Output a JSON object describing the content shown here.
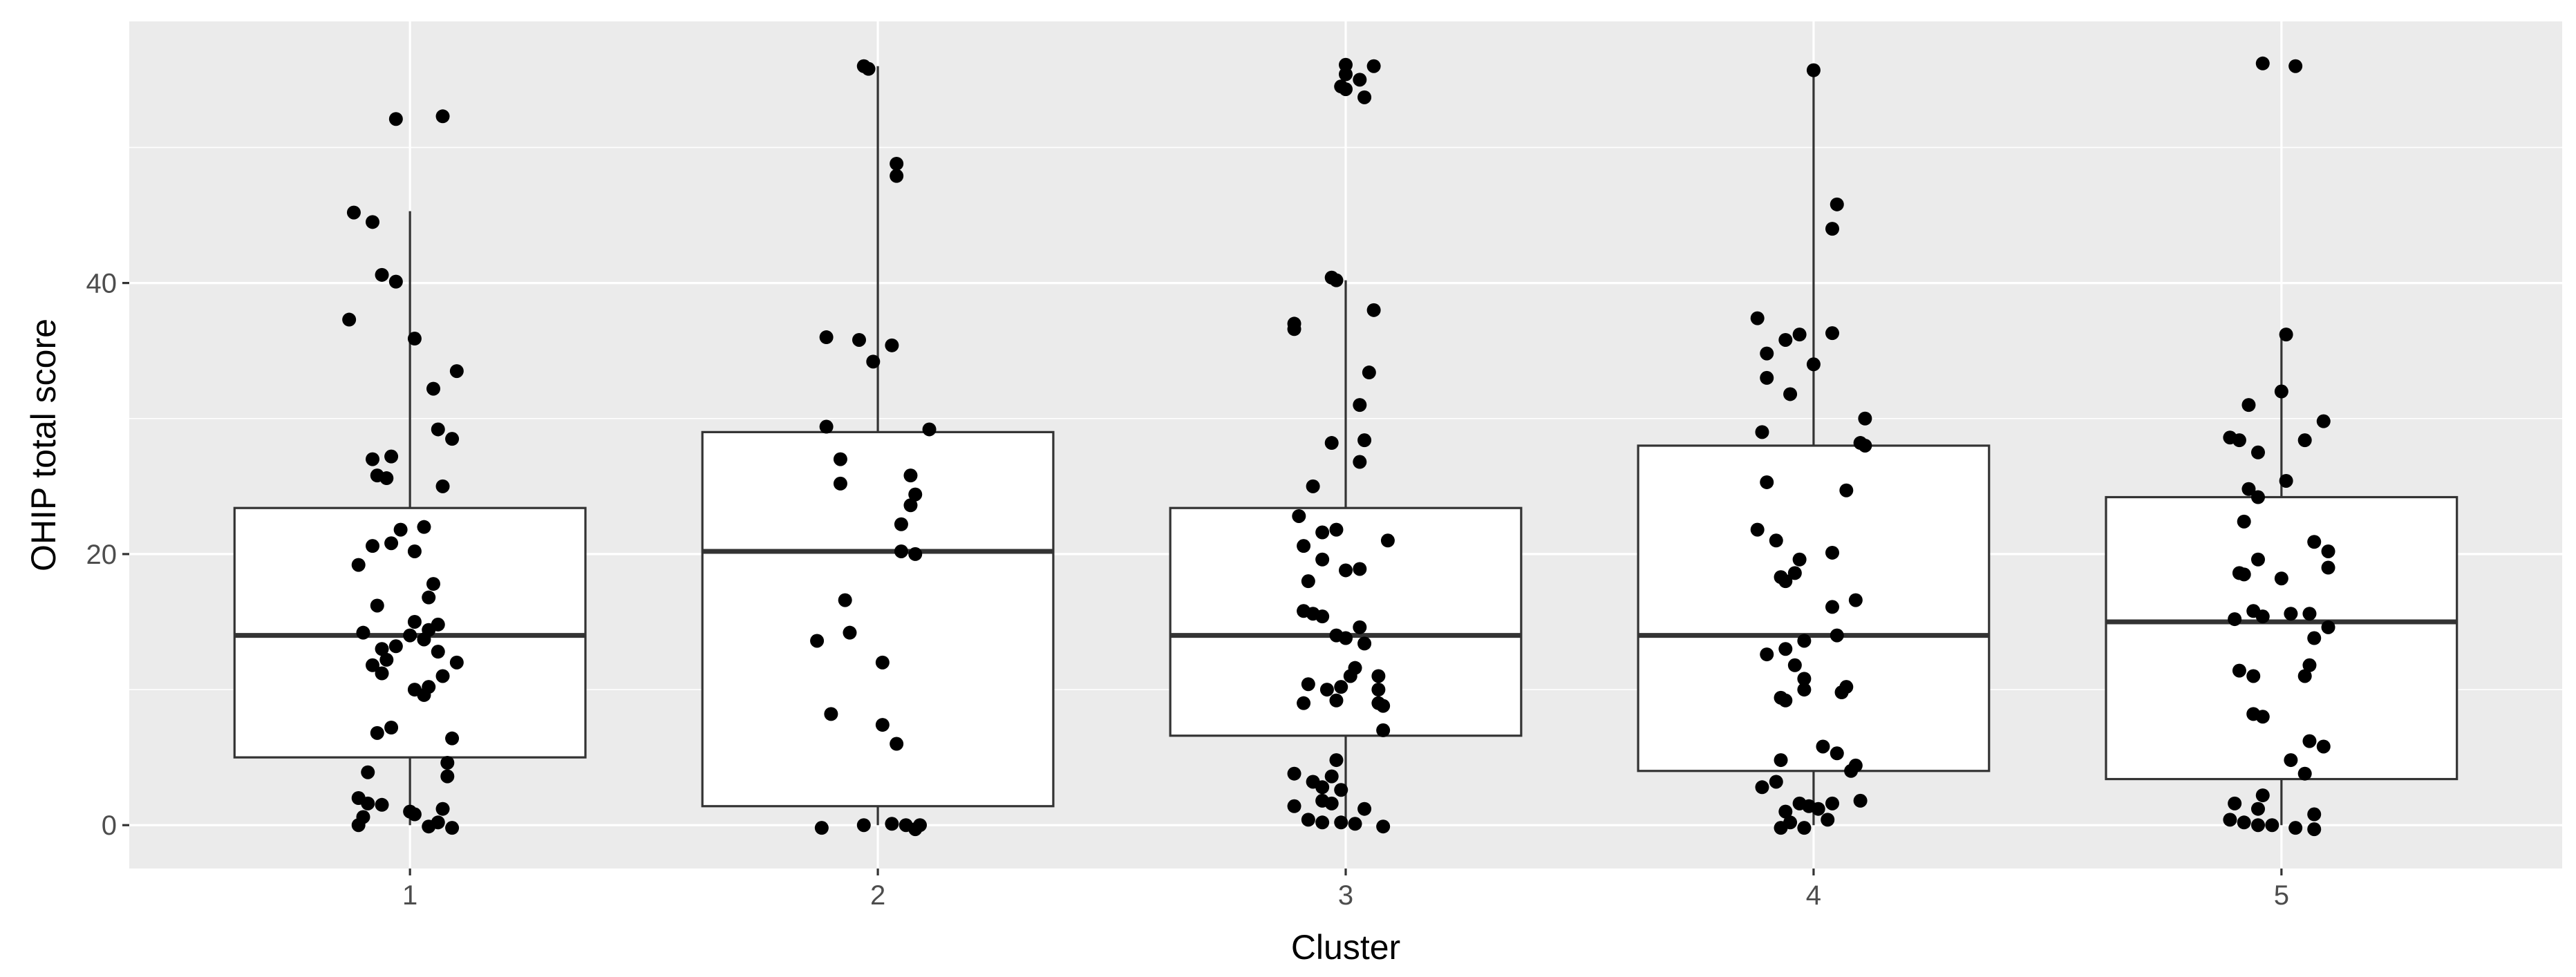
{
  "chart_data": {
    "type": "box",
    "title": "",
    "xlabel": "Cluster",
    "ylabel": "OHIP total score",
    "categories": [
      "1",
      "2",
      "3",
      "4",
      "5"
    ],
    "ylim": [
      -3.2,
      59.3
    ],
    "yticks": [
      0,
      20,
      40
    ],
    "ytick_labels": [
      "0",
      "20",
      "40"
    ],
    "grid": true,
    "legend": "none",
    "colors": {
      "panel": "#EBEBEB",
      "grid": "#FFFFFF",
      "box_fill": "#FFFFFF",
      "box_line": "#333333",
      "points": "#000000"
    },
    "boxes": [
      {
        "category": "1",
        "q1": 5,
        "median": 14,
        "q3": 23.4,
        "whisker_low": 0,
        "whisker_high": 45.3
      },
      {
        "category": "2",
        "q1": 1.4,
        "median": 20.2,
        "q3": 29,
        "whisker_low": 0,
        "whisker_high": 56
      },
      {
        "category": "3",
        "q1": 6.6,
        "median": 14,
        "q3": 23.4,
        "whisker_low": 0,
        "whisker_high": 40.2
      },
      {
        "category": "4",
        "q1": 4,
        "median": 14,
        "q3": 28,
        "whisker_low": 0,
        "whisker_high": 56
      },
      {
        "category": "5",
        "q1": 3.4,
        "median": 15,
        "q3": 24.2,
        "whisker_low": 0,
        "whisker_high": 36.2
      }
    ],
    "points": [
      {
        "x": 0.97,
        "y": 52.1
      },
      {
        "x": 1.07,
        "y": 52.3
      },
      {
        "x": 0.88,
        "y": 45.2
      },
      {
        "x": 0.92,
        "y": 44.5
      },
      {
        "x": 0.94,
        "y": 40.6
      },
      {
        "x": 0.97,
        "y": 40.1
      },
      {
        "x": 0.87,
        "y": 37.3
      },
      {
        "x": 1.01,
        "y": 35.9
      },
      {
        "x": 1.1,
        "y": 33.5
      },
      {
        "x": 1.05,
        "y": 32.2
      },
      {
        "x": 1.06,
        "y": 29.2
      },
      {
        "x": 1.09,
        "y": 28.5
      },
      {
        "x": 0.92,
        "y": 27.0
      },
      {
        "x": 0.96,
        "y": 27.2
      },
      {
        "x": 0.93,
        "y": 25.8
      },
      {
        "x": 0.95,
        "y": 25.6
      },
      {
        "x": 1.07,
        "y": 25.0
      },
      {
        "x": 0.98,
        "y": 21.8
      },
      {
        "x": 1.03,
        "y": 22.0
      },
      {
        "x": 0.92,
        "y": 20.6
      },
      {
        "x": 0.96,
        "y": 20.8
      },
      {
        "x": 1.01,
        "y": 20.2
      },
      {
        "x": 0.89,
        "y": 19.2
      },
      {
        "x": 1.05,
        "y": 17.8
      },
      {
        "x": 1.04,
        "y": 16.8
      },
      {
        "x": 0.93,
        "y": 16.2
      },
      {
        "x": 1.01,
        "y": 15.0
      },
      {
        "x": 1.06,
        "y": 14.8
      },
      {
        "x": 1.04,
        "y": 14.4
      },
      {
        "x": 0.9,
        "y": 14.2
      },
      {
        "x": 1.0,
        "y": 14.0
      },
      {
        "x": 1.03,
        "y": 13.7
      },
      {
        "x": 0.97,
        "y": 13.2
      },
      {
        "x": 0.94,
        "y": 13.0
      },
      {
        "x": 1.06,
        "y": 12.8
      },
      {
        "x": 0.95,
        "y": 12.2
      },
      {
        "x": 1.1,
        "y": 12.0
      },
      {
        "x": 0.92,
        "y": 11.8
      },
      {
        "x": 0.94,
        "y": 11.2
      },
      {
        "x": 1.07,
        "y": 11.0
      },
      {
        "x": 1.01,
        "y": 10.0
      },
      {
        "x": 1.04,
        "y": 10.2
      },
      {
        "x": 1.03,
        "y": 9.6
      },
      {
        "x": 0.96,
        "y": 7.2
      },
      {
        "x": 0.93,
        "y": 6.8
      },
      {
        "x": 1.09,
        "y": 6.4
      },
      {
        "x": 1.08,
        "y": 4.6
      },
      {
        "x": 0.91,
        "y": 3.9
      },
      {
        "x": 1.08,
        "y": 3.6
      },
      {
        "x": 0.89,
        "y": 2.0
      },
      {
        "x": 0.91,
        "y": 1.6
      },
      {
        "x": 0.94,
        "y": 1.5
      },
      {
        "x": 1.07,
        "y": 1.2
      },
      {
        "x": 1.0,
        "y": 1.0
      },
      {
        "x": 0.9,
        "y": 0.6
      },
      {
        "x": 1.01,
        "y": 0.8
      },
      {
        "x": 1.06,
        "y": 0.2
      },
      {
        "x": 0.89,
        "y": 0.0
      },
      {
        "x": 1.04,
        "y": -0.1
      },
      {
        "x": 1.09,
        "y": -0.2
      },
      {
        "x": 1.97,
        "y": 56.0
      },
      {
        "x": 1.98,
        "y": 55.8
      },
      {
        "x": 2.04,
        "y": 48.8
      },
      {
        "x": 2.04,
        "y": 47.9
      },
      {
        "x": 1.89,
        "y": 36.0
      },
      {
        "x": 1.96,
        "y": 35.8
      },
      {
        "x": 2.03,
        "y": 35.4
      },
      {
        "x": 1.99,
        "y": 34.2
      },
      {
        "x": 1.89,
        "y": 29.4
      },
      {
        "x": 2.11,
        "y": 29.2
      },
      {
        "x": 1.92,
        "y": 27.0
      },
      {
        "x": 2.07,
        "y": 25.8
      },
      {
        "x": 1.92,
        "y": 25.2
      },
      {
        "x": 2.08,
        "y": 24.4
      },
      {
        "x": 2.07,
        "y": 23.6
      },
      {
        "x": 2.05,
        "y": 22.2
      },
      {
        "x": 2.05,
        "y": 20.2
      },
      {
        "x": 2.08,
        "y": 20.0
      },
      {
        "x": 1.93,
        "y": 16.6
      },
      {
        "x": 1.94,
        "y": 14.2
      },
      {
        "x": 1.87,
        "y": 13.6
      },
      {
        "x": 2.01,
        "y": 12.0
      },
      {
        "x": 1.9,
        "y": 8.2
      },
      {
        "x": 2.01,
        "y": 7.4
      },
      {
        "x": 2.04,
        "y": 6.0
      },
      {
        "x": 1.88,
        "y": -0.2
      },
      {
        "x": 1.97,
        "y": 0.0
      },
      {
        "x": 2.03,
        "y": 0.1
      },
      {
        "x": 2.06,
        "y": 0.0
      },
      {
        "x": 2.08,
        "y": -0.3
      },
      {
        "x": 2.09,
        "y": 0.0
      },
      {
        "x": 3.0,
        "y": 56.1
      },
      {
        "x": 3.0,
        "y": 55.4
      },
      {
        "x": 3.06,
        "y": 56.0
      },
      {
        "x": 3.03,
        "y": 55.0
      },
      {
        "x": 2.99,
        "y": 54.5
      },
      {
        "x": 3.0,
        "y": 54.3
      },
      {
        "x": 3.04,
        "y": 53.7
      },
      {
        "x": 2.97,
        "y": 40.4
      },
      {
        "x": 2.98,
        "y": 40.2
      },
      {
        "x": 3.06,
        "y": 38.0
      },
      {
        "x": 2.89,
        "y": 37.0
      },
      {
        "x": 2.89,
        "y": 36.6
      },
      {
        "x": 3.05,
        "y": 33.4
      },
      {
        "x": 3.03,
        "y": 31.0
      },
      {
        "x": 3.04,
        "y": 28.4
      },
      {
        "x": 2.97,
        "y": 28.2
      },
      {
        "x": 3.03,
        "y": 26.8
      },
      {
        "x": 2.93,
        "y": 25.0
      },
      {
        "x": 2.9,
        "y": 22.8
      },
      {
        "x": 2.95,
        "y": 21.6
      },
      {
        "x": 2.98,
        "y": 21.8
      },
      {
        "x": 3.09,
        "y": 21.0
      },
      {
        "x": 2.91,
        "y": 20.6
      },
      {
        "x": 2.95,
        "y": 19.6
      },
      {
        "x": 3.0,
        "y": 18.8
      },
      {
        "x": 3.03,
        "y": 18.9
      },
      {
        "x": 2.92,
        "y": 18.0
      },
      {
        "x": 2.91,
        "y": 15.8
      },
      {
        "x": 2.93,
        "y": 15.6
      },
      {
        "x": 2.95,
        "y": 15.4
      },
      {
        "x": 3.03,
        "y": 14.6
      },
      {
        "x": 2.98,
        "y": 14.0
      },
      {
        "x": 3.0,
        "y": 13.8
      },
      {
        "x": 3.04,
        "y": 13.4
      },
      {
        "x": 3.02,
        "y": 11.6
      },
      {
        "x": 3.01,
        "y": 11.0
      },
      {
        "x": 3.07,
        "y": 11.0
      },
      {
        "x": 2.92,
        "y": 10.4
      },
      {
        "x": 2.96,
        "y": 10.0
      },
      {
        "x": 2.99,
        "y": 10.2
      },
      {
        "x": 3.07,
        "y": 10.0
      },
      {
        "x": 2.98,
        "y": 9.2
      },
      {
        "x": 2.91,
        "y": 9.0
      },
      {
        "x": 3.07,
        "y": 9.0
      },
      {
        "x": 3.08,
        "y": 8.8
      },
      {
        "x": 3.08,
        "y": 7.0
      },
      {
        "x": 2.98,
        "y": 4.8
      },
      {
        "x": 2.89,
        "y": 3.8
      },
      {
        "x": 2.97,
        "y": 3.6
      },
      {
        "x": 2.93,
        "y": 3.2
      },
      {
        "x": 2.95,
        "y": 2.8
      },
      {
        "x": 2.99,
        "y": 2.6
      },
      {
        "x": 2.95,
        "y": 1.8
      },
      {
        "x": 2.97,
        "y": 1.6
      },
      {
        "x": 2.89,
        "y": 1.4
      },
      {
        "x": 3.04,
        "y": 1.2
      },
      {
        "x": 2.92,
        "y": 0.4
      },
      {
        "x": 2.95,
        "y": 0.2
      },
      {
        "x": 2.99,
        "y": 0.2
      },
      {
        "x": 3.02,
        "y": 0.1
      },
      {
        "x": 3.08,
        "y": -0.1
      },
      {
        "x": 4.0,
        "y": 55.7
      },
      {
        "x": 4.05,
        "y": 45.8
      },
      {
        "x": 4.04,
        "y": 44.0
      },
      {
        "x": 3.88,
        "y": 37.4
      },
      {
        "x": 3.97,
        "y": 36.2
      },
      {
        "x": 4.04,
        "y": 36.3
      },
      {
        "x": 3.94,
        "y": 35.8
      },
      {
        "x": 3.9,
        "y": 34.8
      },
      {
        "x": 4.0,
        "y": 34.0
      },
      {
        "x": 3.9,
        "y": 33.0
      },
      {
        "x": 3.95,
        "y": 31.8
      },
      {
        "x": 4.11,
        "y": 30.0
      },
      {
        "x": 3.89,
        "y": 29.0
      },
      {
        "x": 4.1,
        "y": 28.2
      },
      {
        "x": 4.11,
        "y": 28.0
      },
      {
        "x": 3.9,
        "y": 25.3
      },
      {
        "x": 4.07,
        "y": 24.7
      },
      {
        "x": 3.88,
        "y": 21.8
      },
      {
        "x": 3.92,
        "y": 21.0
      },
      {
        "x": 4.04,
        "y": 20.1
      },
      {
        "x": 3.97,
        "y": 19.6
      },
      {
        "x": 3.93,
        "y": 18.3
      },
      {
        "x": 3.96,
        "y": 18.6
      },
      {
        "x": 3.94,
        "y": 18.0
      },
      {
        "x": 4.09,
        "y": 16.6
      },
      {
        "x": 4.04,
        "y": 16.1
      },
      {
        "x": 3.98,
        "y": 13.6
      },
      {
        "x": 4.05,
        "y": 14.0
      },
      {
        "x": 3.94,
        "y": 13.0
      },
      {
        "x": 3.9,
        "y": 12.6
      },
      {
        "x": 3.96,
        "y": 11.8
      },
      {
        "x": 3.98,
        "y": 10.8
      },
      {
        "x": 4.07,
        "y": 10.2
      },
      {
        "x": 3.98,
        "y": 10.0
      },
      {
        "x": 4.06,
        "y": 9.8
      },
      {
        "x": 3.93,
        "y": 9.4
      },
      {
        "x": 3.94,
        "y": 9.2
      },
      {
        "x": 4.02,
        "y": 5.8
      },
      {
        "x": 4.05,
        "y": 5.3
      },
      {
        "x": 3.93,
        "y": 4.8
      },
      {
        "x": 4.09,
        "y": 4.4
      },
      {
        "x": 4.08,
        "y": 4.0
      },
      {
        "x": 3.92,
        "y": 3.2
      },
      {
        "x": 3.89,
        "y": 2.8
      },
      {
        "x": 4.1,
        "y": 1.8
      },
      {
        "x": 3.97,
        "y": 1.6
      },
      {
        "x": 4.04,
        "y": 1.6
      },
      {
        "x": 3.99,
        "y": 1.4
      },
      {
        "x": 3.94,
        "y": 1.0
      },
      {
        "x": 4.01,
        "y": 1.2
      },
      {
        "x": 3.95,
        "y": 0.2
      },
      {
        "x": 4.03,
        "y": 0.4
      },
      {
        "x": 3.93,
        "y": -0.2
      },
      {
        "x": 3.98,
        "y": -0.2
      },
      {
        "x": 4.96,
        "y": 56.2
      },
      {
        "x": 5.03,
        "y": 56.0
      },
      {
        "x": 5.01,
        "y": 36.2
      },
      {
        "x": 5.0,
        "y": 32.0
      },
      {
        "x": 4.93,
        "y": 31.0
      },
      {
        "x": 5.09,
        "y": 29.8
      },
      {
        "x": 4.89,
        "y": 28.6
      },
      {
        "x": 4.91,
        "y": 28.4
      },
      {
        "x": 5.05,
        "y": 28.4
      },
      {
        "x": 4.95,
        "y": 27.5
      },
      {
        "x": 5.01,
        "y": 25.4
      },
      {
        "x": 4.93,
        "y": 24.8
      },
      {
        "x": 4.95,
        "y": 24.2
      },
      {
        "x": 4.92,
        "y": 22.4
      },
      {
        "x": 5.07,
        "y": 20.9
      },
      {
        "x": 5.1,
        "y": 20.2
      },
      {
        "x": 4.95,
        "y": 19.6
      },
      {
        "x": 5.1,
        "y": 19.0
      },
      {
        "x": 4.91,
        "y": 18.6
      },
      {
        "x": 4.92,
        "y": 18.5
      },
      {
        "x": 5.0,
        "y": 18.2
      },
      {
        "x": 4.94,
        "y": 15.8
      },
      {
        "x": 5.02,
        "y": 15.6
      },
      {
        "x": 5.06,
        "y": 15.6
      },
      {
        "x": 4.9,
        "y": 15.2
      },
      {
        "x": 4.96,
        "y": 15.4
      },
      {
        "x": 5.1,
        "y": 14.6
      },
      {
        "x": 5.07,
        "y": 13.8
      },
      {
        "x": 5.06,
        "y": 11.8
      },
      {
        "x": 5.05,
        "y": 11.0
      },
      {
        "x": 4.91,
        "y": 11.4
      },
      {
        "x": 4.94,
        "y": 11.0
      },
      {
        "x": 4.94,
        "y": 8.2
      },
      {
        "x": 4.96,
        "y": 8.0
      },
      {
        "x": 5.06,
        "y": 6.2
      },
      {
        "x": 5.09,
        "y": 5.8
      },
      {
        "x": 5.02,
        "y": 4.8
      },
      {
        "x": 5.05,
        "y": 3.8
      },
      {
        "x": 4.96,
        "y": 2.2
      },
      {
        "x": 4.9,
        "y": 1.6
      },
      {
        "x": 4.95,
        "y": 1.2
      },
      {
        "x": 5.07,
        "y": 0.8
      },
      {
        "x": 4.89,
        "y": 0.4
      },
      {
        "x": 4.92,
        "y": 0.2
      },
      {
        "x": 4.95,
        "y": 0.0
      },
      {
        "x": 4.98,
        "y": 0.0
      },
      {
        "x": 5.03,
        "y": -0.2
      },
      {
        "x": 5.07,
        "y": -0.3
      }
    ]
  }
}
